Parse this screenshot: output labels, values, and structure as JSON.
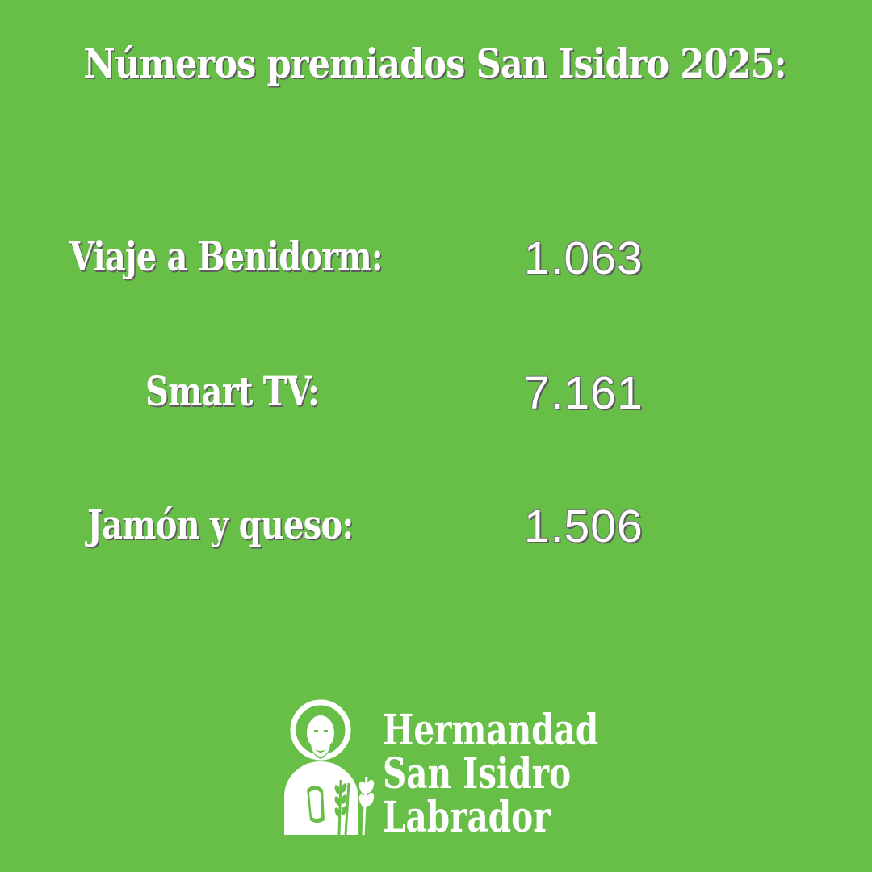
{
  "title": "Números premiados San Isidro 2025:",
  "prizes": [
    {
      "label": "Viaje a Benidorm:",
      "number": "1.063"
    },
    {
      "label": "Smart TV:",
      "number": "7.161"
    },
    {
      "label": "Jamón y queso:",
      "number": "1.506"
    }
  ],
  "logo": {
    "line1": "Hermandad",
    "line2": "San Isidro",
    "line3": "Labrador",
    "icon": "saint-isidro-icon"
  },
  "colors": {
    "background": "#67bf48",
    "text": "#ffffff",
    "shadow": "#5e5e5e"
  }
}
